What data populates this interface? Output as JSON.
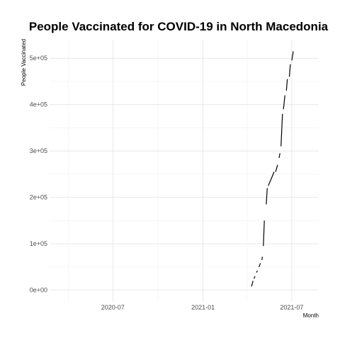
{
  "chart_data": {
    "type": "line",
    "title": "People Vaccinated for COVID-19 in North Macedonia",
    "xlabel": "Month",
    "ylabel": "People Vaccinated",
    "x_ticks": [
      "2020-07",
      "2021-01",
      "2021-07"
    ],
    "y_ticks": [
      {
        "value": 0,
        "label": "0e+00"
      },
      {
        "value": 100000,
        "label": "1e+05"
      },
      {
        "value": 200000,
        "label": "2e+05"
      },
      {
        "value": 300000,
        "label": "3e+05"
      },
      {
        "value": 400000,
        "label": "4e+05"
      },
      {
        "value": 500000,
        "label": "5e+05"
      }
    ],
    "xlim": [
      "2020-02-23",
      "2021-08-25"
    ],
    "ylim": [
      -25000,
      540000
    ],
    "grid": true,
    "series": [
      {
        "segments": [
          [
            [
              "2021-04-10",
              8000
            ],
            [
              "2021-04-13",
              20000
            ]
          ],
          [
            [
              "2021-04-15",
              25000
            ],
            [
              "2021-04-17",
              30000
            ]
          ],
          [
            [
              "2021-04-20",
              38000
            ],
            [
              "2021-04-22",
              42000
            ]
          ],
          [
            [
              "2021-04-25",
              50000
            ],
            [
              "2021-04-28",
              58000
            ]
          ],
          [
            [
              "2021-05-01",
              65000
            ],
            [
              "2021-05-02",
              72000
            ]
          ],
          [
            [
              "2021-05-04",
              95000
            ],
            [
              "2021-05-06",
              150000
            ]
          ],
          [
            [
              "2021-05-10",
              185000
            ],
            [
              "2021-05-12",
              220000
            ]
          ],
          [
            [
              "2021-05-14",
              225000
            ],
            [
              "2021-05-20",
              240000
            ],
            [
              "2021-05-26",
              255000
            ]
          ],
          [
            [
              "2021-05-29",
              255000
            ],
            [
              "2021-06-02",
              270000
            ]
          ],
          [
            [
              "2021-06-05",
              285000
            ],
            [
              "2021-06-07",
              295000
            ]
          ],
          [
            [
              "2021-06-09",
              310000
            ],
            [
              "2021-06-12",
              380000
            ]
          ],
          [
            [
              "2021-06-14",
              390000
            ],
            [
              "2021-06-17",
              420000
            ]
          ],
          [
            [
              "2021-06-20",
              430000
            ],
            [
              "2021-06-22",
              455000
            ]
          ],
          [
            [
              "2021-06-26",
              460000
            ],
            [
              "2021-06-28",
              487000
            ]
          ],
          [
            [
              "2021-07-01",
              495000
            ],
            [
              "2021-07-04",
              515000
            ]
          ]
        ]
      }
    ]
  }
}
